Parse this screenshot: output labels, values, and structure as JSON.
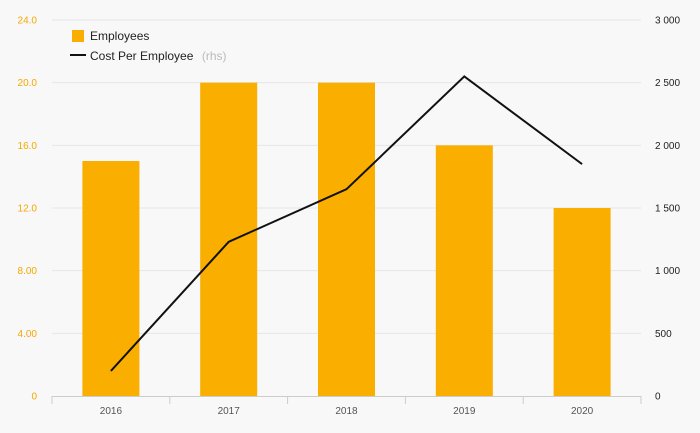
{
  "chart_data": {
    "type": "bar",
    "categories": [
      "2016",
      "2017",
      "2018",
      "2019",
      "2020"
    ],
    "series": [
      {
        "name": "Employees",
        "type": "bar",
        "axis": "left",
        "values": [
          15,
          20,
          20,
          16,
          12
        ]
      },
      {
        "name": "Cost Per Employee",
        "type": "line",
        "axis": "right",
        "values": [
          200,
          1230,
          1650,
          2550,
          1850
        ]
      }
    ],
    "legend_suffix": "(rhs)",
    "y_left": {
      "ylim": [
        0,
        24
      ],
      "ticks": [
        "0",
        "4.00",
        "8.00",
        "12.0",
        "16.0",
        "20.0",
        "24.0"
      ]
    },
    "y_right": {
      "ylim": [
        0,
        3000
      ],
      "ticks": [
        "0",
        "500",
        "1 000",
        "1 500",
        "2 000",
        "2 500",
        "3 000"
      ]
    },
    "legend_position": "top-left",
    "grid": true
  },
  "colors": {
    "bar": "#f9ae00",
    "line": "#111111",
    "grid": "#e6e6e6",
    "left_axis_text": "#f5a800"
  }
}
